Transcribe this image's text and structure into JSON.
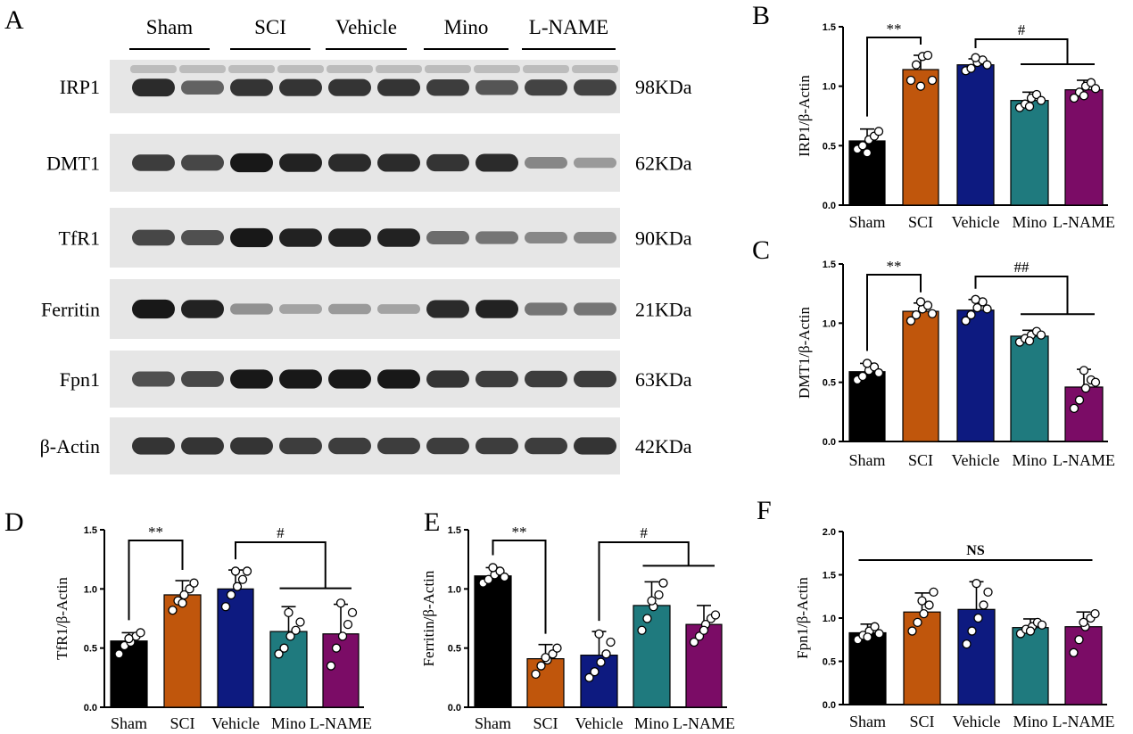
{
  "figure": {
    "panel_a": {
      "letter": "A",
      "groups": [
        "Sham",
        "SCI",
        "Vehicle",
        "Mino",
        "L-NAME"
      ],
      "blots": [
        {
          "protein": "IRP1",
          "size": "98KDa",
          "intensity": [
            0.85,
            0.55,
            0.8,
            0.8,
            0.8,
            0.8,
            0.75,
            0.62,
            0.72,
            0.72
          ],
          "upper_band": true
        },
        {
          "protein": "DMT1",
          "size": "62KDa",
          "intensity": [
            0.75,
            0.7,
            0.95,
            0.9,
            0.85,
            0.85,
            0.8,
            0.85,
            0.35,
            0.25
          ],
          "upper_band": false
        },
        {
          "protein": "TfR1",
          "size": "90KDa",
          "intensity": [
            0.7,
            0.65,
            0.95,
            0.9,
            0.9,
            0.9,
            0.5,
            0.45,
            0.35,
            0.35
          ],
          "upper_band": false
        },
        {
          "protein": "Ferritin",
          "size": "21KDa",
          "intensity": [
            0.95,
            0.9,
            0.3,
            0.2,
            0.25,
            0.2,
            0.85,
            0.9,
            0.45,
            0.45
          ],
          "upper_band": false
        },
        {
          "protein": "Fpn1",
          "size": "63KDa",
          "intensity": [
            0.65,
            0.7,
            0.95,
            0.95,
            0.95,
            0.95,
            0.8,
            0.75,
            0.75,
            0.75
          ],
          "upper_band": false
        },
        {
          "protein": "β-Actin",
          "size": "42KDa",
          "intensity": [
            0.8,
            0.8,
            0.8,
            0.75,
            0.75,
            0.75,
            0.75,
            0.75,
            0.75,
            0.8
          ],
          "upper_band": false
        }
      ]
    }
  },
  "colors": {
    "Sham": "#000000",
    "SCI": "#c0560c",
    "Vehicle": "#0d1a80",
    "Mino": "#1f7a7e",
    "L-NAME": "#7b0c66"
  },
  "chart_data": [
    {
      "panel": "B",
      "type": "bar",
      "ylabel": "IRP1/β-Actin",
      "categories": [
        "Sham",
        "SCI",
        "Vehicle",
        "Mino",
        "L-NAME"
      ],
      "values": [
        0.54,
        1.14,
        1.18,
        0.88,
        0.97
      ],
      "errors": [
        0.1,
        0.12,
        0.05,
        0.07,
        0.08
      ],
      "points": [
        [
          0.47,
          0.5,
          0.55,
          0.58,
          0.62,
          0.44
        ],
        [
          1.05,
          1.18,
          1.25,
          1.26,
          1.05,
          1.0
        ],
        [
          1.13,
          1.15,
          1.2,
          1.22,
          1.18,
          1.24
        ],
        [
          0.82,
          0.85,
          0.9,
          0.93,
          0.88,
          0.83
        ],
        [
          0.9,
          0.95,
          1.0,
          1.03,
          0.98,
          0.92
        ]
      ],
      "ylim": [
        0,
        1.5
      ],
      "yticks": [
        0.0,
        0.5,
        1.0,
        1.5
      ],
      "tick_labels": [
        "0.0",
        "0.5",
        "1.0",
        "1.5"
      ],
      "annotations": [
        {
          "text": "**",
          "from": 0,
          "to": 1,
          "type": "pair"
        },
        {
          "text": "#",
          "from": 2,
          "to": [
            3,
            4
          ],
          "type": "bracket"
        }
      ]
    },
    {
      "panel": "C",
      "type": "bar",
      "ylabel": "DMT1/β-Actin",
      "categories": [
        "Sham",
        "SCI",
        "Vehicle",
        "Mino",
        "L-NAME"
      ],
      "values": [
        0.59,
        1.1,
        1.11,
        0.89,
        0.46
      ],
      "errors": [
        0.07,
        0.07,
        0.09,
        0.05,
        0.15
      ],
      "points": [
        [
          0.52,
          0.55,
          0.6,
          0.63,
          0.58,
          0.66
        ],
        [
          1.02,
          1.07,
          1.12,
          1.15,
          1.08,
          1.18
        ],
        [
          1.02,
          1.07,
          1.13,
          1.18,
          1.12,
          1.2
        ],
        [
          0.84,
          0.87,
          0.9,
          0.93,
          0.9,
          0.85
        ],
        [
          0.28,
          0.35,
          0.45,
          0.52,
          0.5,
          0.6
        ]
      ],
      "ylim": [
        0,
        1.5
      ],
      "yticks": [
        0.0,
        0.5,
        1.0,
        1.5
      ],
      "tick_labels": [
        "0.0",
        "0.5",
        "1.0",
        "1.5"
      ],
      "annotations": [
        {
          "text": "**",
          "from": 0,
          "to": 1,
          "type": "pair"
        },
        {
          "text": "##",
          "from": 2,
          "to": [
            3,
            4
          ],
          "type": "bracket"
        }
      ]
    },
    {
      "panel": "D",
      "type": "bar",
      "ylabel": "TfR1/β-Actin",
      "categories": [
        "Sham",
        "SCI",
        "Vehicle",
        "Mino",
        "L-NAME"
      ],
      "values": [
        0.56,
        0.95,
        1.0,
        0.64,
        0.62
      ],
      "errors": [
        0.07,
        0.12,
        0.16,
        0.21,
        0.25
      ],
      "points": [
        [
          0.45,
          0.52,
          0.55,
          0.6,
          0.63,
          0.58
        ],
        [
          0.82,
          0.9,
          0.95,
          1.0,
          1.05,
          0.88
        ],
        [
          0.85,
          0.95,
          1.02,
          1.08,
          1.15,
          1.15
        ],
        [
          0.45,
          0.5,
          0.6,
          0.65,
          0.72,
          0.8
        ],
        [
          0.35,
          0.5,
          0.6,
          0.7,
          0.8,
          0.88
        ]
      ],
      "ylim": [
        0,
        1.5
      ],
      "yticks": [
        0.0,
        0.5,
        1.0,
        1.5
      ],
      "tick_labels": [
        "0.0",
        "0.5",
        "1.0",
        "1.5"
      ],
      "annotations": [
        {
          "text": "**",
          "from": 0,
          "to": 1,
          "type": "pair"
        },
        {
          "text": "#",
          "from": 2,
          "to": [
            3,
            4
          ],
          "type": "bracket"
        }
      ]
    },
    {
      "panel": "E",
      "type": "bar",
      "ylabel": "Ferritin/β-Actin",
      "categories": [
        "Sham",
        "SCI",
        "Vehicle",
        "Mino",
        "L-NAME"
      ],
      "values": [
        1.11,
        0.41,
        0.44,
        0.86,
        0.7
      ],
      "errors": [
        0.07,
        0.12,
        0.2,
        0.2,
        0.16
      ],
      "points": [
        [
          1.05,
          1.08,
          1.12,
          1.15,
          1.1,
          1.18
        ],
        [
          0.28,
          0.35,
          0.4,
          0.45,
          0.5,
          0.42
        ],
        [
          0.25,
          0.3,
          0.38,
          0.45,
          0.55,
          0.62
        ],
        [
          0.65,
          0.75,
          0.85,
          0.95,
          1.05,
          0.9
        ],
        [
          0.55,
          0.6,
          0.7,
          0.75,
          0.78,
          0.65
        ]
      ],
      "ylim": [
        0,
        1.5
      ],
      "yticks": [
        0.0,
        0.5,
        1.0,
        1.5
      ],
      "tick_labels": [
        "0.0",
        "0.5",
        "1.0",
        "1.5"
      ],
      "annotations": [
        {
          "text": "**",
          "from": 0,
          "to": 1,
          "type": "pair"
        },
        {
          "text": "#",
          "from": 2,
          "to": [
            3,
            4
          ],
          "type": "bracket"
        }
      ]
    },
    {
      "panel": "F",
      "type": "bar",
      "ylabel": "Fpn1/β-Actin",
      "categories": [
        "Sham",
        "SCI",
        "Vehicle",
        "Mino",
        "L-NAME"
      ],
      "values": [
        0.83,
        1.07,
        1.1,
        0.89,
        0.9
      ],
      "errors": [
        0.1,
        0.22,
        0.32,
        0.1,
        0.17
      ],
      "points": [
        [
          0.75,
          0.8,
          0.85,
          0.9,
          0.82,
          0.78
        ],
        [
          0.85,
          0.95,
          1.05,
          1.15,
          1.3,
          1.2
        ],
        [
          0.7,
          0.85,
          1.0,
          1.15,
          1.3,
          1.4
        ],
        [
          0.82,
          0.87,
          0.9,
          0.95,
          0.92,
          0.85
        ],
        [
          0.6,
          0.75,
          0.9,
          1.0,
          1.05,
          0.95
        ]
      ],
      "ylim": [
        0,
        2.0
      ],
      "yticks": [
        0.0,
        0.5,
        1.0,
        1.5,
        2.0
      ],
      "tick_labels": [
        "0.0",
        "0.5",
        "1.0",
        "1.5",
        "2.0"
      ],
      "annotations": [
        {
          "text": "NS",
          "from": 0,
          "to": 4,
          "type": "line"
        }
      ]
    }
  ]
}
